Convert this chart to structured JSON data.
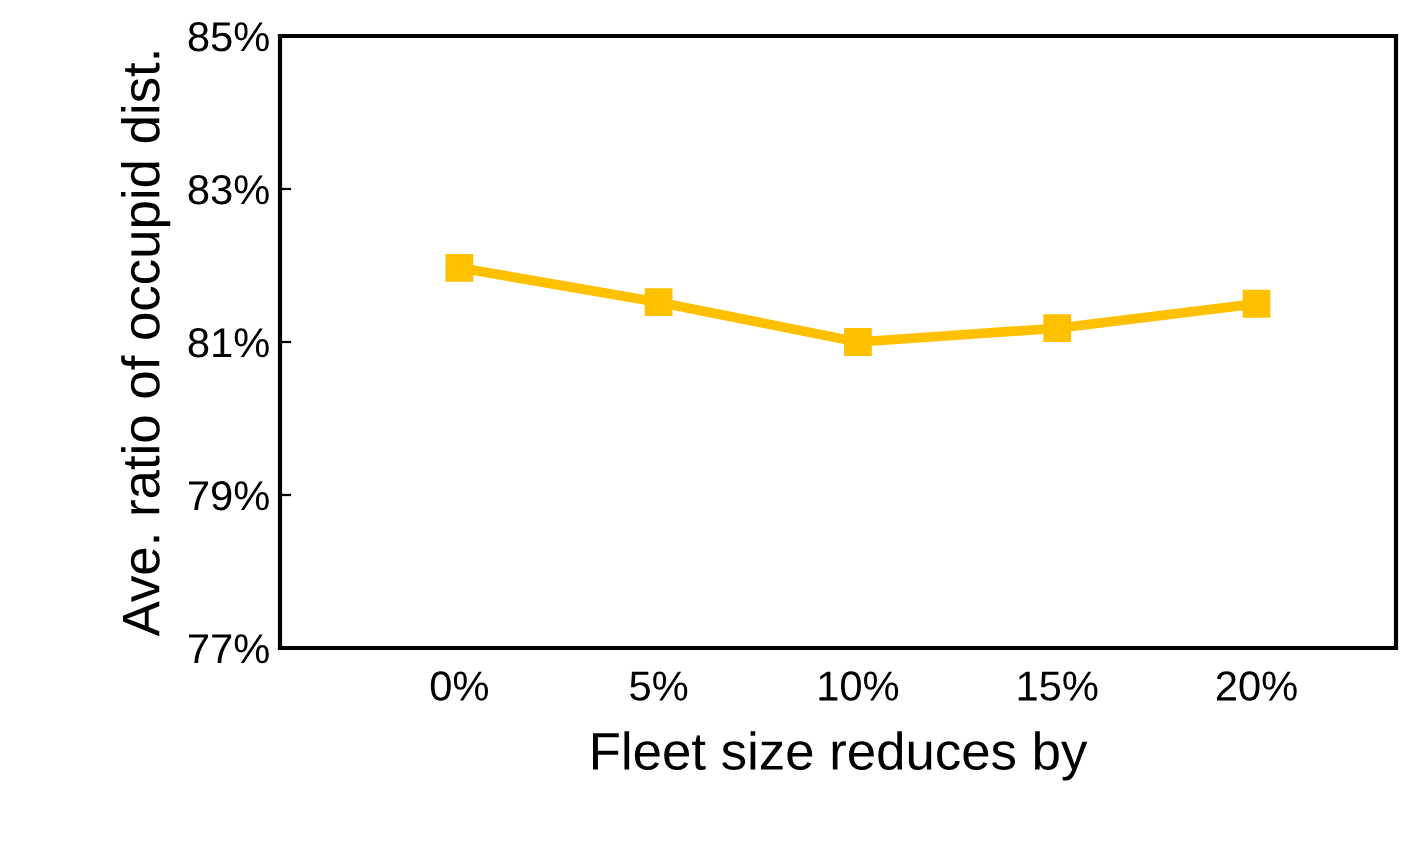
{
  "chart_data": {
    "type": "line",
    "xlabel": "Fleet size reduces by",
    "ylabel": "Ave. ratio of occupid dist.",
    "categories": [
      "0%",
      "5%",
      "10%",
      "15%",
      "20%"
    ],
    "series": [
      {
        "color": "#ffc000",
        "values": [
          81.97,
          81.52,
          81.0,
          81.18,
          81.5
        ]
      }
    ],
    "ylim": [
      77,
      85
    ],
    "yticks": [
      {
        "value": 77,
        "label": "77%"
      },
      {
        "value": 79,
        "label": "79%"
      },
      {
        "value": 81,
        "label": "81%"
      },
      {
        "value": 83,
        "label": "83%"
      },
      {
        "value": 85,
        "label": "85%"
      }
    ],
    "grid": false,
    "legend": false,
    "marker": "square",
    "line_style": "solid"
  }
}
